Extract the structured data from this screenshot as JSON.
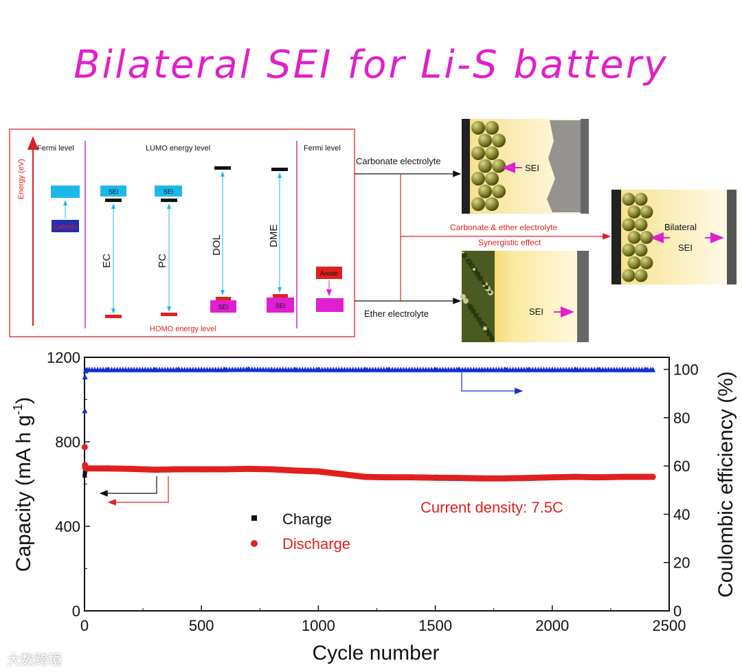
{
  "title": "Bilateral SEI for Li-S battery",
  "diagram": {
    "energy_axis": "Energy (eV)",
    "fermi_left": "Fermi level",
    "fermi_right": "Fermi level",
    "lumo": "LUMO energy level",
    "homo": "HOMO energy level",
    "cathode": "Cathode",
    "anode": "Anode",
    "sei": "SEI",
    "solvents": [
      "EC",
      "PC",
      "DOL",
      "DME"
    ],
    "carbonate": "Carbonate electrolyte",
    "ether": "Ether electrolyte",
    "combo_line1": "Carbonate & ether electrolyte",
    "combo_line2": "Synergistic  effect",
    "bilateral1": "Bilateral",
    "bilateral2": "SEI"
  },
  "watermark": "大数跨境",
  "colors": {
    "title": "#e020c8",
    "charge": "#111111",
    "discharge": "#e02020",
    "efficiency": "#1030d0",
    "sei": "#e020d0",
    "lumo": "#1eb8e8"
  },
  "chart_data": {
    "type": "scatter",
    "xlabel": "Cycle number",
    "ylabel": "Capacity (mA h g",
    "ylabel_sup": "-1",
    "ylabel_end": ")",
    "y2label": "Coulombic efficiency (%)",
    "xlim": [
      0,
      2500
    ],
    "ylim": [
      0,
      1200
    ],
    "y2lim": [
      0,
      105
    ],
    "xticks": [
      "0",
      "500",
      "1000",
      "1500",
      "2000",
      "2500"
    ],
    "yticks": [
      "0",
      "400",
      "800",
      "1200"
    ],
    "y2ticks": [
      "0",
      "20",
      "40",
      "60",
      "80",
      "100"
    ],
    "annotation": "Current density: 7.5C",
    "legend": [
      "Charge",
      "Discharge"
    ],
    "series": [
      {
        "name": "Charge",
        "axis": "left",
        "x": [
          1,
          2,
          3,
          5,
          10,
          100,
          200,
          300,
          400,
          500,
          600,
          700,
          800,
          900,
          1000,
          1100,
          1200,
          1300,
          1400,
          1500,
          1600,
          1700,
          1800,
          1900,
          2000,
          2100,
          2200,
          2300,
          2400,
          2430
        ],
        "y": [
          640,
          655,
          665,
          670,
          672,
          672,
          670,
          667,
          668,
          668,
          668,
          670,
          668,
          662,
          658,
          645,
          632,
          630,
          630,
          628,
          627,
          625,
          625,
          627,
          630,
          632,
          630,
          632,
          632,
          632
        ]
      },
      {
        "name": "Discharge",
        "axis": "left",
        "x": [
          1,
          2,
          3,
          5,
          10,
          100,
          200,
          300,
          400,
          500,
          600,
          700,
          800,
          900,
          1000,
          1100,
          1200,
          1300,
          1400,
          1500,
          1600,
          1700,
          1800,
          1900,
          2000,
          2100,
          2200,
          2300,
          2400,
          2430
        ],
        "y": [
          775,
          690,
          678,
          675,
          674,
          674,
          672,
          668,
          670,
          670,
          670,
          672,
          670,
          664,
          660,
          647,
          634,
          632,
          632,
          630,
          629,
          627,
          627,
          629,
          632,
          634,
          632,
          634,
          634,
          634
        ]
      },
      {
        "name": "Coulombic efficiency",
        "axis": "right",
        "x": [
          1,
          2,
          5,
          10,
          100,
          200,
          300,
          400,
          500,
          600,
          700,
          800,
          900,
          1000,
          1100,
          1200,
          1300,
          1400,
          1500,
          1600,
          1700,
          1800,
          1900,
          2000,
          2100,
          2200,
          2300,
          2400,
          2430
        ],
        "y": [
          83,
          97,
          99.5,
          100,
          100,
          100,
          100,
          100,
          100,
          100,
          100.1,
          100,
          100,
          100,
          100,
          100,
          100,
          100,
          100,
          100,
          100,
          100,
          100,
          100,
          100,
          100,
          100,
          100,
          100
        ]
      }
    ]
  }
}
